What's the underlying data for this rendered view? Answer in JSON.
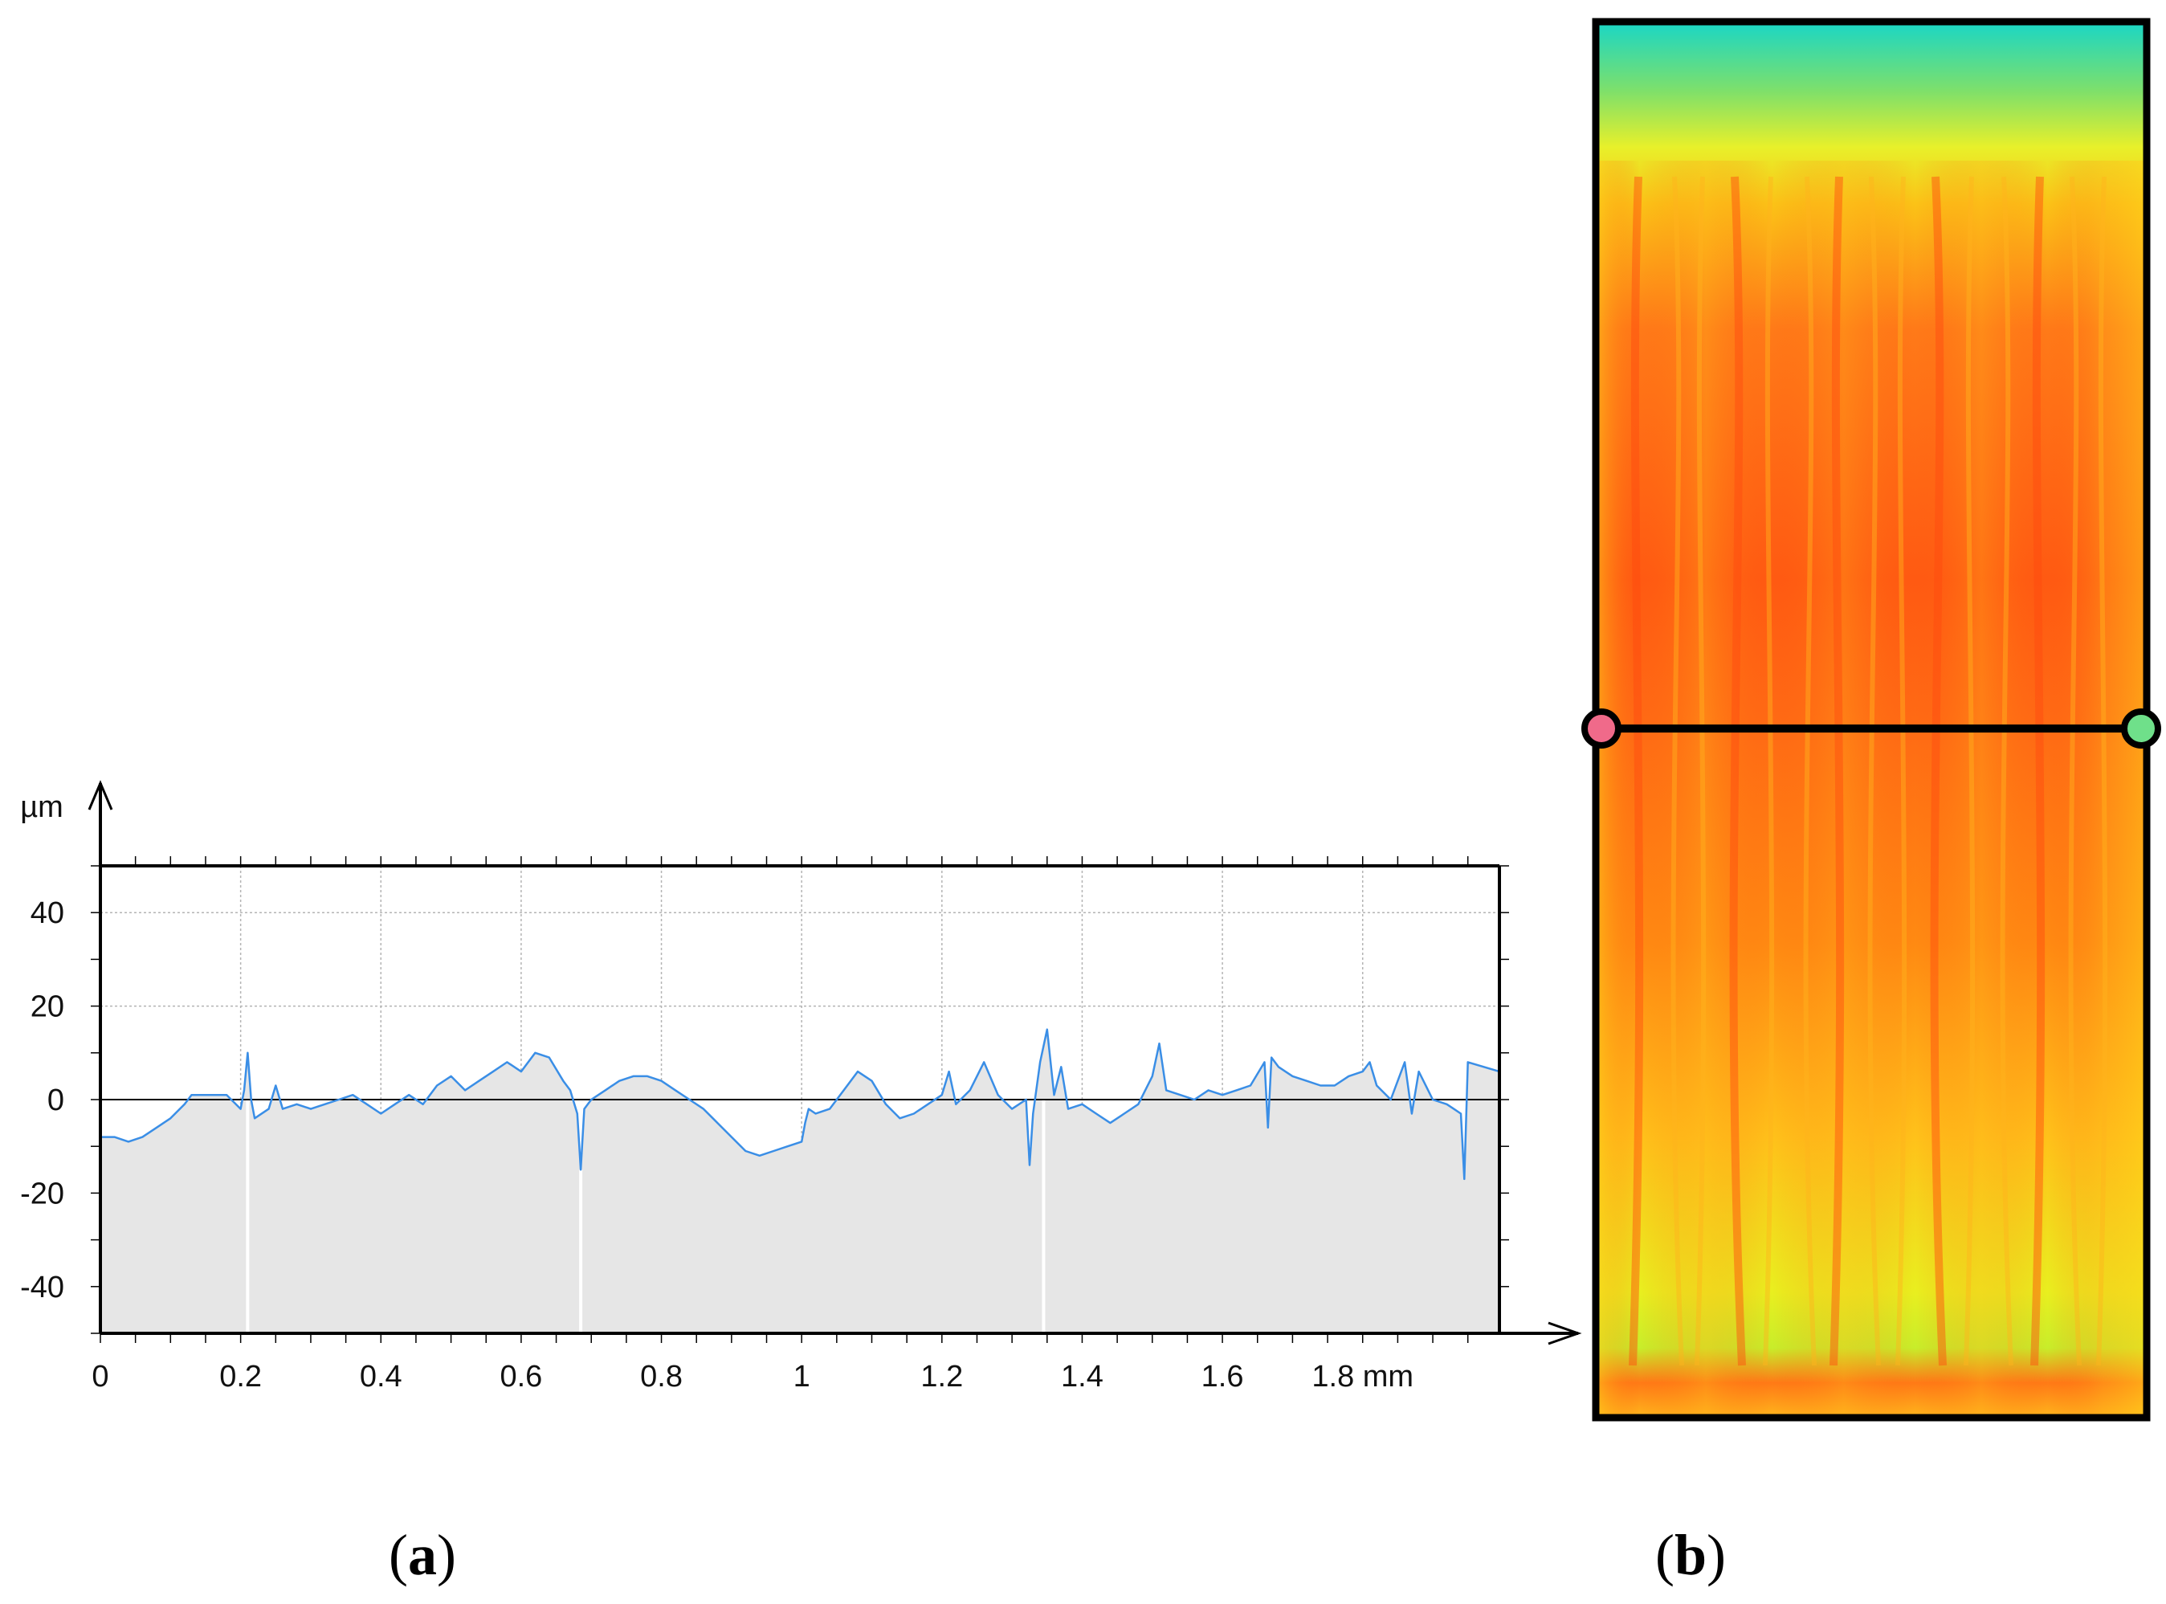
{
  "panels": {
    "a": {
      "open": "(",
      "letter": "a",
      "close": ")"
    },
    "b": {
      "open": "(",
      "letter": "b",
      "close": ")"
    }
  },
  "colors": {
    "profile_line": "#3a8ee6",
    "fill": "#e6e6e6",
    "axis": "#000000",
    "grid": "#b4b4b4",
    "marker_left": "#f06a8a",
    "marker_right": "#6fe08a"
  },
  "chart_data": {
    "type": "area",
    "xunit": "mm",
    "yunit": "µm",
    "xlim": [
      0,
      1.995
    ],
    "ylim": [
      -50,
      50
    ],
    "grid": true,
    "xticks": [
      0,
      0.2,
      0.4,
      0.6,
      0.8,
      1,
      1.2,
      1.4,
      1.6,
      1.8
    ],
    "xtick_labels": [
      "0",
      "0.2",
      "0.4",
      "0.6",
      "0.8",
      "1",
      "1.2",
      "1.4",
      "1.6",
      "1.8 mm"
    ],
    "yticks": [
      40,
      20,
      0,
      -20,
      -40
    ],
    "ytick_labels": [
      "40",
      "20",
      "0",
      "-20",
      "-40"
    ],
    "series": [
      {
        "x": [
          0.0,
          0.02,
          0.04,
          0.06,
          0.08,
          0.1,
          0.12,
          0.13,
          0.14,
          0.16,
          0.18,
          0.2,
          0.205,
          0.21,
          0.215,
          0.22,
          0.24,
          0.25,
          0.26,
          0.28,
          0.3,
          0.32,
          0.34,
          0.36,
          0.38,
          0.4,
          0.42,
          0.44,
          0.46,
          0.48,
          0.5,
          0.52,
          0.54,
          0.56,
          0.58,
          0.6,
          0.62,
          0.64,
          0.66,
          0.67,
          0.68,
          0.685,
          0.69,
          0.7,
          0.72,
          0.74,
          0.76,
          0.78,
          0.8,
          0.82,
          0.84,
          0.86,
          0.88,
          0.9,
          0.92,
          0.94,
          0.96,
          0.98,
          1.0,
          1.005,
          1.01,
          1.02,
          1.04,
          1.06,
          1.08,
          1.1,
          1.12,
          1.14,
          1.16,
          1.18,
          1.2,
          1.21,
          1.22,
          1.24,
          1.26,
          1.28,
          1.3,
          1.32,
          1.325,
          1.33,
          1.34,
          1.35,
          1.36,
          1.37,
          1.38,
          1.4,
          1.42,
          1.44,
          1.46,
          1.48,
          1.5,
          1.51,
          1.52,
          1.54,
          1.56,
          1.58,
          1.6,
          1.62,
          1.64,
          1.66,
          1.665,
          1.67,
          1.68,
          1.7,
          1.72,
          1.74,
          1.76,
          1.78,
          1.8,
          1.81,
          1.82,
          1.84,
          1.86,
          1.87,
          1.88,
          1.9,
          1.92,
          1.93,
          1.94,
          1.945,
          1.95,
          1.995
        ],
        "y": [
          -8,
          -8,
          -9,
          -8,
          -6,
          -4,
          -1,
          1,
          1,
          1,
          1,
          -2,
          2,
          10,
          0,
          -4,
          -2,
          3,
          -2,
          -1,
          -2,
          -1,
          0,
          1,
          -1,
          -3,
          -1,
          1,
          -1,
          3,
          5,
          2,
          4,
          6,
          8,
          6,
          10,
          9,
          4,
          2,
          -3,
          -15,
          -2,
          0,
          2,
          4,
          5,
          5,
          4,
          2,
          0,
          -2,
          -5,
          -8,
          -11,
          -12,
          -11,
          -10,
          -9,
          -5,
          -2,
          -3,
          -2,
          2,
          6,
          4,
          -1,
          -4,
          -3,
          -1,
          1,
          6,
          -1,
          2,
          8,
          1,
          -2,
          0,
          -14,
          -3,
          8,
          15,
          1,
          7,
          -2,
          -1,
          -3,
          -5,
          -3,
          -1,
          5,
          12,
          2,
          1,
          0,
          2,
          1,
          2,
          3,
          8,
          -6,
          9,
          7,
          5,
          4,
          3,
          3,
          5,
          6,
          8,
          3,
          0,
          8,
          -3,
          6,
          0,
          -1,
          -2,
          -3,
          -17,
          8,
          6
        ]
      }
    ]
  }
}
